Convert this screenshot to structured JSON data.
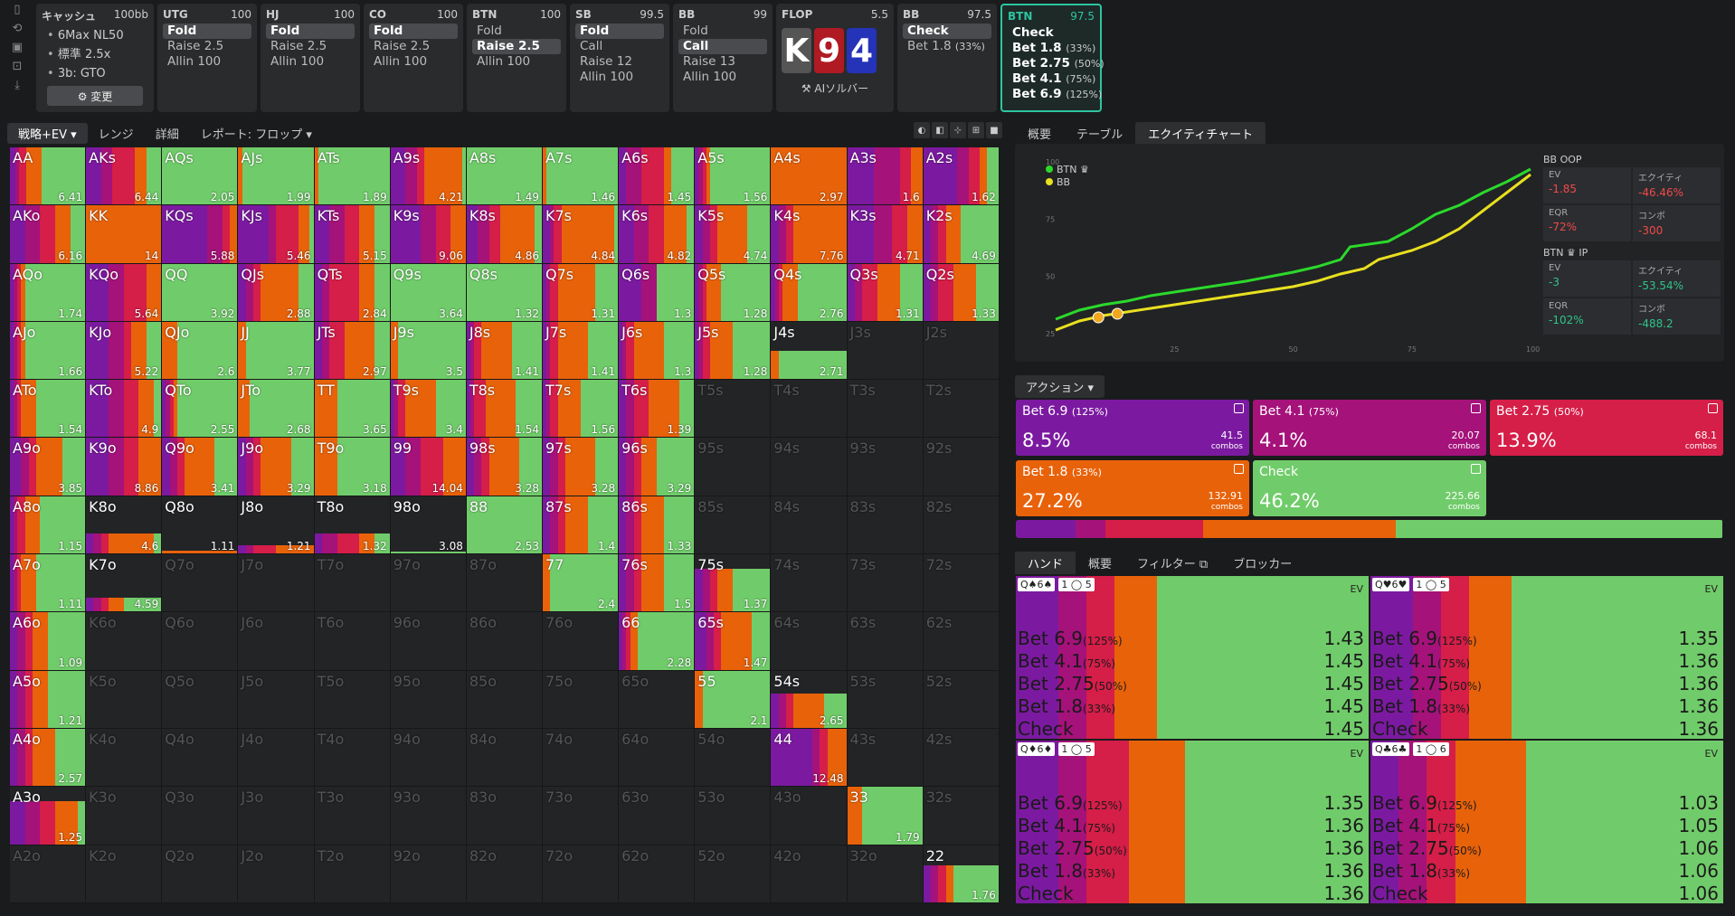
{
  "leftbar": {
    "icons": [
      "bookmark-icon",
      "history-icon",
      "save-icon",
      "gamepad-icon",
      "import-icon"
    ]
  },
  "settings": {
    "title": "キャッシュ",
    "stack": "100bb",
    "items": [
      "6Max NL50",
      "標準 2.5x",
      "3b: GTO"
    ],
    "button": "⚙ 変更"
  },
  "positions": [
    {
      "name": "UTG",
      "stack": "100",
      "actions": [
        "Fold",
        "Raise 2.5",
        "Allin 100"
      ],
      "sel": 0
    },
    {
      "name": "HJ",
      "stack": "100",
      "actions": [
        "Fold",
        "Raise 2.5",
        "Allin 100"
      ],
      "sel": 0
    },
    {
      "name": "CO",
      "stack": "100",
      "actions": [
        "Fold",
        "Raise 2.5",
        "Allin 100"
      ],
      "sel": 0
    },
    {
      "name": "BTN",
      "stack": "100",
      "actions": [
        "Fold",
        "Raise 2.5",
        "Allin 100"
      ],
      "sel": 1
    },
    {
      "name": "SB",
      "stack": "99.5",
      "actions": [
        "Fold",
        "Call",
        "Raise 12",
        "Allin 100"
      ],
      "sel": 0
    },
    {
      "name": "BB",
      "stack": "99",
      "actions": [
        "Fold",
        "Call",
        "Raise 13",
        "Allin 100"
      ],
      "sel": 1
    }
  ],
  "flop": {
    "label": "FLOP",
    "pot": "5.5",
    "cards": [
      {
        "r": "K",
        "c": "#555"
      },
      {
        "r": "9",
        "c": "#b01a22"
      },
      {
        "r": "4",
        "c": "#2533b8"
      }
    ],
    "ai": "⚒ AIソルバー"
  },
  "bbnode": {
    "name": "BB",
    "stack": "97.5",
    "actions": [
      {
        "l": "Check",
        "s": ""
      },
      {
        "l": "Bet 1.8",
        "s": "(33%)"
      }
    ]
  },
  "btnnode": {
    "name": "BTN",
    "stack": "97.5",
    "actions": [
      {
        "l": "Check",
        "s": ""
      },
      {
        "l": "Bet 1.8",
        "s": "(33%)"
      },
      {
        "l": "Bet 2.75",
        "s": "(50%)"
      },
      {
        "l": "Bet 4.1",
        "s": "(75%)"
      },
      {
        "l": "Bet 6.9",
        "s": "(125%)"
      }
    ]
  },
  "lefttabs": [
    "戦略+EV ▾",
    "レンジ",
    "詳細",
    "レポート: フロップ ▾"
  ],
  "viewtools": [
    "◐",
    "◧",
    "⊹",
    "⊞",
    "■"
  ],
  "colors": {
    "b69": "#7b1aa0",
    "b41": "#a5127a",
    "b275": "#d51e48",
    "b18": "#e8620a",
    "chk": "#70cc6a"
  },
  "matrix": [
    [
      "AA|6.41|1|7,5,10,20,58",
      "AKs|6.44|1|20,15,30,15,20",
      "AQs|2.05|1|0,0,0,0,100",
      "AJs|1.99|1|0,0,0,5,95",
      "ATs|1.89|1|0,0,0,5,95",
      "A9s|4.21|1|20,15,10,50,5",
      "A8s|1.49|1|0,0,0,0,100",
      "A7s|1.46|1|0,0,0,5,95",
      "A6s|1.45|1|10,20,30,10,30",
      "A5s|1.56|1|5,5,5,5,80",
      "A4s|2.97|1|0,0,0,100,0",
      "A3s|1.6|1|35,35,15,15,0",
      "A2s|1.62|1|45,15,15,10,15"
    ],
    [
      "AKo|6.16|1|20,20,20,20,20",
      "KK|14|1|0,0,0,100,0",
      "KQs|5.88|1|60,20,10,10,0",
      "KJs|5.46|1|40,10,30,15,5",
      "KTs|5.15|1|20,20,20,20,20",
      "K9s|9.06|1|40,20,20,20,0",
      "K8s|4.86|1|15,15,15,45,10",
      "K7s|4.84|1|10,5,10,70,5",
      "K6s|4.82|1|20,20,20,30,10",
      "K5s|4.74|1|10,10,10,40,30",
      "K4s|7.76|1|10,10,10,70,0",
      "K3s|4.71|1|35,25,20,20,0",
      "K2s|4.69|1|10,10,10,20,50"
    ],
    [
      "AQo|1.74|1|5,5,5,5,80",
      "KQo|5.64|1|30,20,30,20,0",
      "QQ|3.92|1|0,0,0,0,100",
      "QJs|2.88|1|10,10,10,50,20",
      "QTs|2.84|1|10,10,40,20,20",
      "Q9s|3.64|1|0,0,0,0,100",
      "Q8s|1.32|1|0,0,0,0,100",
      "Q7s|1.31|1|5,5,10,50,30",
      "Q6s|1.3|1|30,20,0,0,50",
      "Q5s|1.28|1|5,5,5,20,65",
      "Q4s|2.76|1|5,5,5,20,65",
      "Q3s|1.31|1|10,10,20,30,30",
      "Q2s|1.33|1|10,10,20,30,30"
    ],
    [
      "AJo|1.66|1|5,5,5,5,80",
      "KJo|5.22|1|30,20,10,20,20",
      "QJo|2.6|1|0,0,0,20,80",
      "JJ|3.77|1|0,0,0,10,90",
      "JTs|2.97|1|10,10,20,40,20",
      "J9s|3.5|1|0,0,0,10,90",
      "J8s|1.41|1|5,5,10,40,40",
      "J7s|1.41|1|5,5,10,40,40",
      "J6s|1.3|1|5,5,10,40,40",
      "J5s|1.28|1|5,5,10,30,50",
      "J4s|2.71|0.5|0,0,0,10,90",
      "J3s||0|",
      "J2s||0|"
    ],
    [
      "ATo|1.54|1|5,5,5,20,65",
      "KTo|4.9|1|30,20,20,20,10",
      "QTo|2.55|1|5,5,5,5,80",
      "JTo|2.68|1|0,0,0,15,85",
      "TT|3.65|1|0,0,0,30,70",
      "T9s|3.4|1|5,5,10,40,40",
      "T8s|1.54|1|5,5,15,40,35",
      "T7s|1.56|1|5,5,10,30,50",
      "T6s|1.39|1|10,10,20,40,20",
      "T5s||0|",
      "T4s||0|",
      "T3s||0|",
      "T2s||0|"
    ],
    [
      "A9o|3.85|1|15,10,10,35,30",
      "K9o|8.86|1|30,20,20,30,0",
      "Q9o|3.41|1|10,10,10,40,30",
      "J9o|3.29|1|10,10,10,40,30",
      "T9o|3.18|1|0,0,0,30,70",
      "99|14.04|1|20,20,30,30,0",
      "98s|3.28|1|10,10,10,40,30",
      "97s|3.28|1|10,10,10,40,30",
      "96s|3.29|1|10,10,10,20,50",
      "95s||0|",
      "94s||0|",
      "93s||0|",
      "92s||0|"
    ],
    [
      "A8o|1.15|1|5,5,10,20,60",
      "K8o|4.6|0.35|10,10,10,60,10",
      "Q8o|1.11|0.05|0,0,0,100,0",
      "J8o|1.21|0.15|10,10,30,50,0",
      "T8o|1.32|0.35|10,20,30,20,20",
      "98o|3.08|0.03|0,0,0,0,100",
      "88|2.53|1|0,0,0,0,100",
      "87s|1.4|1|10,10,10,30,40",
      "86s|1.33|1|10,10,10,30,40",
      "85s||0|",
      "84s||0|",
      "83s||0|",
      "82s||0|"
    ],
    [
      "A7o|1.11|1|5,5,5,20,65",
      "K7o|4.59|0.25|10,10,10,20,50",
      "Q7o||0|",
      "J7o||0|",
      "T7o||0|",
      "97o||0|",
      "87o||0|",
      "77|2.4|1|0,0,0,10,90",
      "76s|1.5|1|10,10,10,30,40",
      "75s|1.37|0.75|10,10,10,20,50",
      "74s||0|",
      "73s||0|",
      "72s||0|"
    ],
    [
      "A6o|1.09|1|10,10,10,20,50",
      "K6o||0|",
      "Q6o||0|",
      "J6o||0|",
      "T6o||0|",
      "96o||0|",
      "86o||0|",
      "76o||0|",
      "66|2.28|1|5,5,5,10,75",
      "65s|1.47|1|15,10,10,40,25",
      "64s||0|",
      "63s||0|",
      "62s||0|"
    ],
    [
      "A5o|1.21|1|10,10,10,20,50",
      "K5o||0|",
      "Q5o||0|",
      "J5o||0|",
      "T5o||0|",
      "95o||0|",
      "85o||0|",
      "75o||0|",
      "65o||0|",
      "55|2.1|1|0,0,0,10,90",
      "54s|2.65|0.6|10,10,10,40,30",
      "53s||0|",
      "52s||0|"
    ],
    [
      "A4o|2.57|1|10,10,10,30,40",
      "K4o||0|",
      "Q4o||0|",
      "J4o||0|",
      "T4o||0|",
      "94o||0|",
      "84o||0|",
      "74o||0|",
      "64o||0|",
      "54o||0|",
      "44|12.48|1|55,10,10,25,0",
      "43s||0|",
      "42s||0|"
    ],
    [
      "A3o|1.25|0.75|20,20,20,30,10",
      "K3o||0|",
      "Q3o||0|",
      "J3o||0|",
      "T3o||0|",
      "93o||0|",
      "83o||0|",
      "73o||0|",
      "63o||0|",
      "53o||0|",
      "43o||0|",
      "33|1.79|1|0,0,0,20,80",
      "32s||0|"
    ],
    [
      "A2o||0|",
      "K2o||0|",
      "Q2o||0|",
      "J2o||0|",
      "T2o||0|",
      "92o||0|",
      "82o||0|",
      "72o||0|",
      "62o||0|",
      "52o||0|",
      "42o||0|",
      "32o||0|",
      "22|1.76|0.65|10,10,10,10,60"
    ]
  ],
  "righttabs": [
    "概要",
    "テーブル",
    "エクイティチャート"
  ],
  "chart_data": {
    "type": "line",
    "series": [
      {
        "name": "BTN ♛",
        "color": "#2bd92b"
      },
      {
        "name": "BB",
        "color": "#e8e020"
      }
    ],
    "xticks": [
      "25",
      "50",
      "75",
      "100"
    ],
    "yticks": [
      "100",
      "75",
      "50",
      "25"
    ]
  },
  "eq": {
    "bb": {
      "title": "BB OOP",
      "ev": "-1.85",
      "equity": "-46.46%",
      "eqr": "-72%",
      "combo": "-300"
    },
    "btn": {
      "title": "BTN ♛ IP",
      "ev": "-3",
      "equity": "-53.54%",
      "eqr": "-102%",
      "combo": "-488.2"
    },
    "labels": {
      "ev": "EV",
      "equity": "エクイティ",
      "eqr": "EQR",
      "combo": "コンボ"
    }
  },
  "actionlabel": "アクション ▾",
  "actions": [
    {
      "t": "Bet 6.9",
      "s": "(125%)",
      "p": "8.5%",
      "c": "41.5",
      "color": "#7b1aa0"
    },
    {
      "t": "Bet 4.1",
      "s": "(75%)",
      "p": "4.1%",
      "c": "20.07",
      "color": "#a5127a"
    },
    {
      "t": "Bet 2.75",
      "s": "(50%)",
      "p": "13.9%",
      "c": "68.1",
      "color": "#d51e48"
    },
    {
      "t": "Bet 1.8",
      "s": "(33%)",
      "p": "27.2%",
      "c": "132.91",
      "color": "#e8620a"
    },
    {
      "t": "Check",
      "s": "",
      "p": "46.2%",
      "c": "225.66",
      "color": "#70cc6a"
    }
  ],
  "combos_word": "combos",
  "handtabs": [
    "ハンド",
    "概要",
    "フィルター ⧉",
    "ブロッカー"
  ],
  "hands": [
    {
      "cards": "Q♠6♠",
      "tag2": "1 ◯ 5",
      "vals": [
        "1.43",
        "1.45",
        "1.45",
        "1.45",
        "1.45"
      ],
      "split": [
        12,
        8,
        8,
        12,
        60
      ]
    },
    {
      "cards": "Q♥6♥",
      "tag2": "1 ◯ 5",
      "vals": [
        "1.35",
        "1.36",
        "1.36",
        "1.36",
        "1.36"
      ],
      "split": [
        12,
        8,
        8,
        12,
        60
      ]
    },
    {
      "cards": "Q♦6♦",
      "tag2": "1 ◯ 5",
      "vals": [
        "1.35",
        "1.36",
        "1.36",
        "1.36",
        "1.36"
      ],
      "split": [
        12,
        8,
        12,
        16,
        52
      ]
    },
    {
      "cards": "Q♣6♣",
      "tag2": "1 ◯ 6",
      "vals": [
        "1.03",
        "1.05",
        "1.06",
        "1.06",
        "1.06"
      ],
      "split": [
        8,
        8,
        8,
        20,
        56
      ]
    }
  ],
  "handrows": [
    {
      "l": "Bet 6.9",
      "s": "(125%)"
    },
    {
      "l": "Bet 4.1",
      "s": "(75%)"
    },
    {
      "l": "Bet 2.75",
      "s": "(50%)"
    },
    {
      "l": "Bet 1.8",
      "s": "(33%)"
    },
    {
      "l": "Check",
      "s": ""
    }
  ],
  "evlabel": "EV"
}
